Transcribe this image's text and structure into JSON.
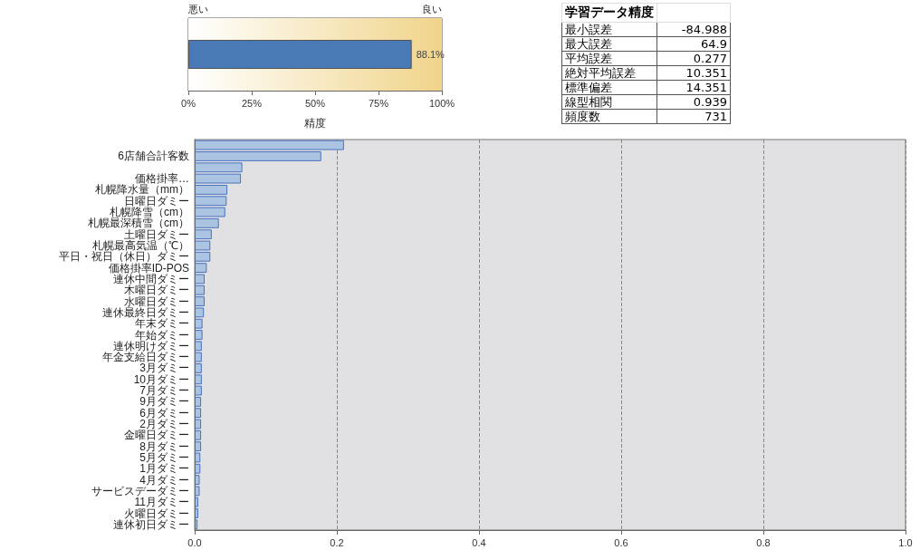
{
  "chart_data": [
    {
      "type": "bar",
      "orientation": "horizontal",
      "categories": [
        null
      ],
      "values": [
        88.1
      ],
      "value_labels": [
        "88.1%"
      ],
      "color": "#4a7ab5",
      "xlim": [
        0,
        100
      ],
      "xticks": [
        {
          "value": 0,
          "label": "0%"
        },
        {
          "value": 25,
          "label": "25%"
        },
        {
          "value": 50,
          "label": "50%"
        },
        {
          "value": 75,
          "label": "75%"
        },
        {
          "value": 100,
          "label": "100%"
        }
      ],
      "xlabel": "精度",
      "annotations": [
        "悪い",
        "良い"
      ],
      "bands": [
        {
          "axis": "x",
          "from": 0,
          "to": 100,
          "color": "#f0d48a"
        }
      ]
    },
    {
      "type": "other",
      "title": "学習データ精度",
      "categories": [
        "最小誤差",
        "最大誤差",
        "平均誤差",
        "絶対平均誤差",
        "標準偏差",
        "線型相関",
        "頻度数"
      ],
      "values": [
        -84.988,
        64.9,
        0.277,
        10.351,
        14.351,
        0.939,
        731
      ],
      "data_labels": true
    },
    {
      "type": "bar",
      "orientation": "horizontal",
      "color": "#aac4e2",
      "categories": [
        null,
        "6店舗合計客数",
        null,
        "価格掛率…",
        "札幌降水量（mm）",
        "日曜日ダミー",
        "札幌降雪（cm）",
        "札幌最深積雪（cm）",
        "土曜日ダミー",
        "札幌最高気温（℃）",
        "平日・祝日（休日）ダミー",
        "価格掛率ID-POS",
        "連休中間ダミー",
        "木曜日ダミー",
        "水曜日ダミー",
        "連休最終日ダミー",
        "年末ダミー",
        "年始ダミー",
        "連休明けダミー",
        "年金支給日ダミー",
        "3月ダミー",
        "10月ダミー",
        "7月ダミー",
        "9月ダミー",
        "6月ダミー",
        "2月ダミー",
        "金曜日ダミー",
        "8月ダミー",
        "5月ダミー",
        "1月ダミー",
        "4月ダミー",
        "サービスデーダミー",
        "11月ダミー",
        "火曜日ダミー",
        "連休初日ダミー"
      ],
      "values": [
        0.21,
        0.178,
        0.067,
        0.065,
        0.046,
        0.045,
        0.043,
        0.034,
        0.024,
        0.022,
        0.022,
        0.017,
        0.014,
        0.014,
        0.014,
        0.013,
        0.011,
        0.011,
        0.01,
        0.01,
        0.01,
        0.01,
        0.01,
        0.009,
        0.009,
        0.009,
        0.009,
        0.009,
        0.008,
        0.008,
        0.007,
        0.007,
        0.005,
        0.005,
        0.004
      ],
      "xlim": [
        0,
        1
      ],
      "xticks": [
        {
          "value": 0,
          "label": "0.0"
        },
        0.2,
        0.4,
        0.6,
        0.8,
        {
          "value": 1,
          "label": "1.0"
        }
      ],
      "grid": "x"
    }
  ]
}
